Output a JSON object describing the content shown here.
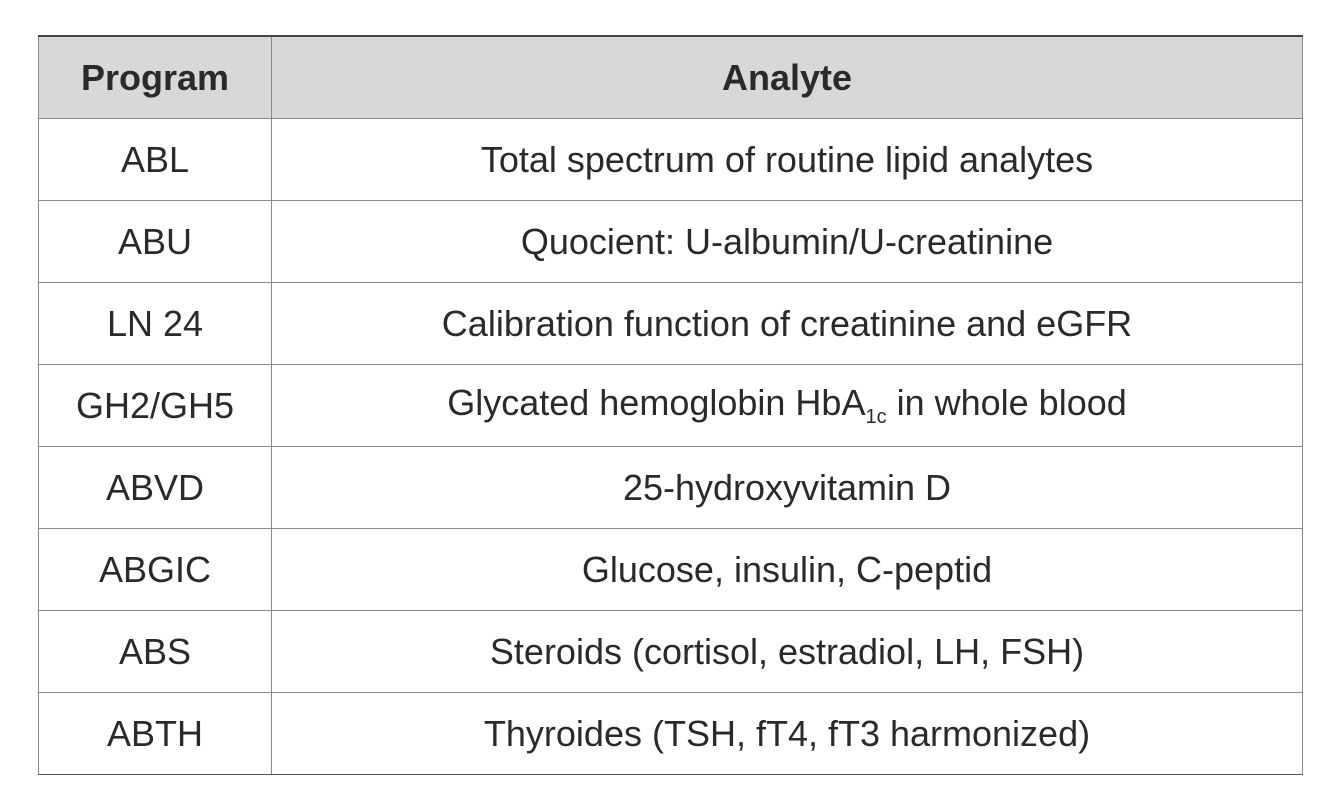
{
  "table": {
    "header": [
      "Program",
      "Analyte"
    ],
    "rows": [
      [
        "ABL",
        "Total spectrum of routine lipid analytes"
      ],
      [
        "ABU",
        "Quocient: U-albumin/U-creatinine"
      ],
      [
        "LN 24",
        "Calibration function of creatinine and eGFR"
      ],
      [
        "GH2/GH5",
        {
          "text": "Glycated hemoglobin HbA",
          "sub": "1c",
          "after": " in whole blood"
        }
      ],
      [
        "ABVD",
        "25-hydroxyvitamin D"
      ],
      [
        "ABGIC",
        "Glucose, insulin, C-peptid"
      ],
      [
        "ABS",
        "Steroids (cortisol, estradiol, LH, FSH)"
      ],
      [
        "ABTH",
        "Thyroides (TSH, fT4, fT3 harmonized)"
      ]
    ]
  }
}
